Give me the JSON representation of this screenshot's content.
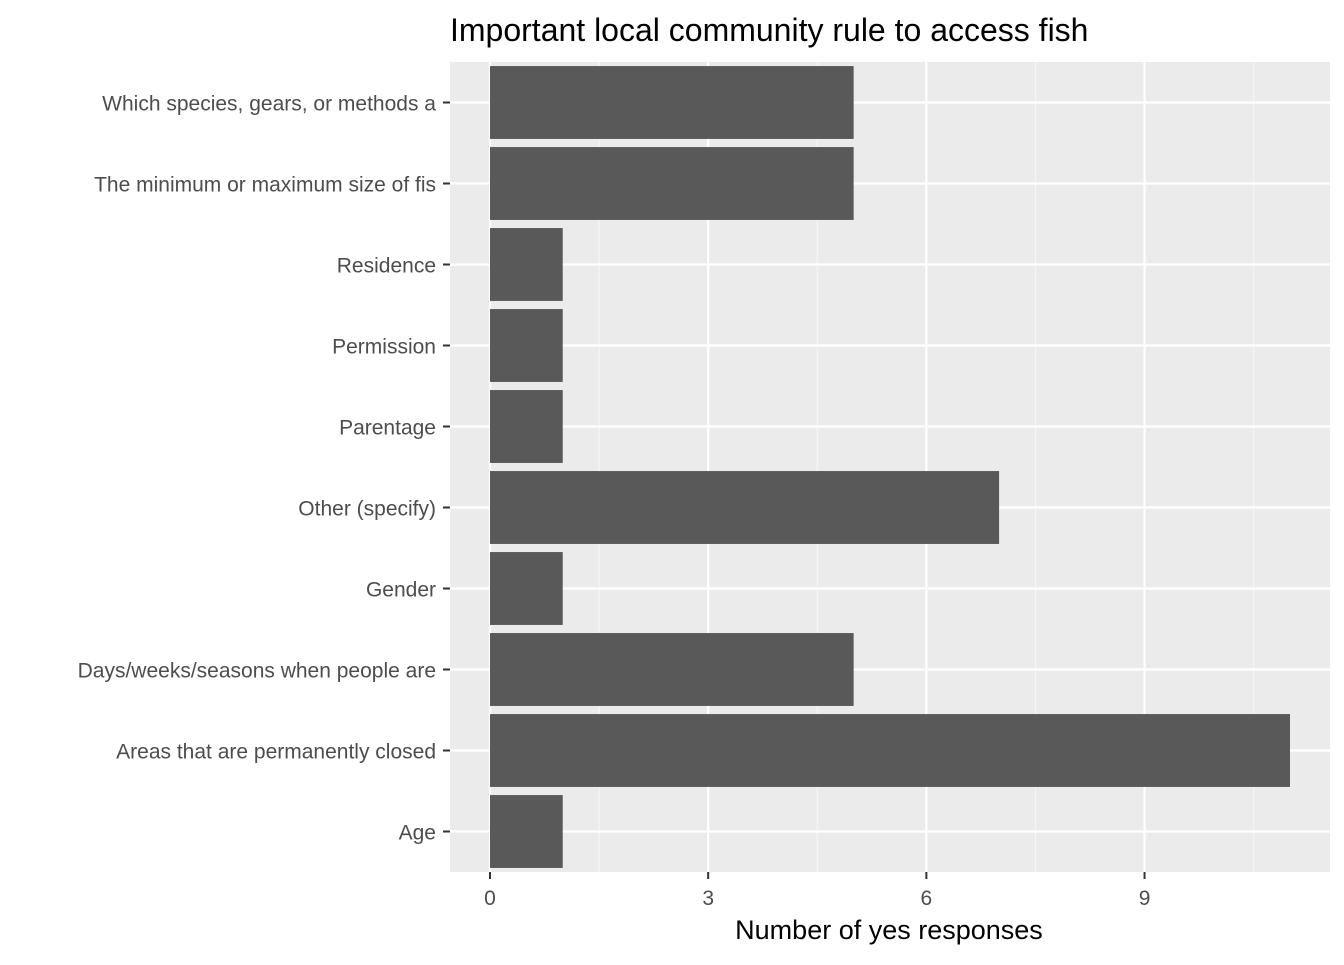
{
  "colors": {
    "panel_background": "#ebebeb",
    "grid_major": "#ffffff",
    "grid_minor": "#f5f5f5",
    "bar_fill": "#595959",
    "tick_mark": "#333333",
    "tick_text": "#4d4d4d",
    "title_text": "#000000"
  },
  "chart_data": {
    "type": "bar",
    "orientation": "horizontal",
    "title": "Important local community rule to access fish",
    "xlabel": "Number of yes responses",
    "ylabel": "",
    "categories": [
      "Which species, gears, or methods a",
      "The minimum or maximum size of fis",
      "Residence",
      "Permission",
      "Parentage",
      "Other (specify)",
      "Gender",
      "Days/weeks/seasons when people are",
      "Areas that are permanently closed ",
      "Age"
    ],
    "values": [
      5,
      5,
      1,
      1,
      1,
      7,
      1,
      5,
      11,
      1
    ],
    "xlim": [
      -0.55,
      11.55
    ],
    "x_ticks": [
      0,
      3,
      6,
      9
    ],
    "x_tick_labels": [
      "0",
      "3",
      "6",
      "9"
    ],
    "x_minor_ticks": [
      1.5,
      4.5,
      7.5,
      10.5
    ],
    "grid": true,
    "legend": "none"
  }
}
